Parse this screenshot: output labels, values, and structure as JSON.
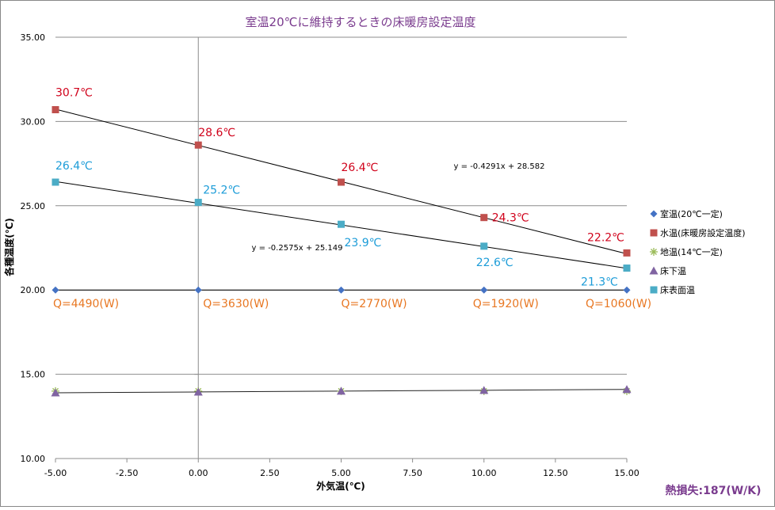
{
  "chart_data": {
    "type": "scatter",
    "title": "室温20℃に維持するときの床暖房設定温度",
    "xlabel": "外気温(℃)",
    "ylabel": "各種温度(℃)",
    "xlim": [
      -5,
      15
    ],
    "ylim": [
      10,
      35
    ],
    "x_ticks": [
      "-5.00",
      "-2.50",
      "0.00",
      "2.50",
      "5.00",
      "7.50",
      "10.00",
      "12.50",
      "15.00"
    ],
    "y_ticks": [
      "10.00",
      "15.00",
      "20.00",
      "25.00",
      "30.00",
      "35.00"
    ],
    "grid": "horizontal",
    "legend_position": "right",
    "footer_note": "熱損失:187(W/K)",
    "colors": {
      "title": "#7A3B8E",
      "room": "#4472C4",
      "water": "#C0504D",
      "ground": "#9BBB59",
      "underfloor": "#8064A2",
      "surface": "#4BACC6",
      "water_label": "#D0021B",
      "surface_label": "#1C9CD8",
      "heat_label": "#E87722"
    },
    "x": [
      -5,
      0,
      5,
      10,
      15
    ],
    "series": [
      {
        "name": "室温(20℃一定)",
        "marker": "diamond",
        "values": [
          20.0,
          20.0,
          20.0,
          20.0,
          20.0
        ]
      },
      {
        "name": "水温(床暖房設定温度)",
        "marker": "square",
        "values": [
          30.7,
          28.6,
          26.4,
          24.3,
          22.2
        ],
        "data_labels": [
          "30.7℃",
          "28.6℃",
          "26.4℃",
          "24.3℃",
          "22.2℃"
        ]
      },
      {
        "name": "地温(14℃一定)",
        "marker": "star",
        "values": [
          14.0,
          14.0,
          14.0,
          14.0,
          14.0
        ]
      },
      {
        "name": "床下温",
        "marker": "triangle",
        "values": [
          13.9,
          13.95,
          14.0,
          14.05,
          14.1
        ]
      },
      {
        "name": "床表面温",
        "marker": "square",
        "values": [
          26.4,
          25.2,
          23.9,
          22.6,
          21.3
        ],
        "data_labels": [
          "26.4℃",
          "25.2℃",
          "23.9℃",
          "22.6℃",
          "21.3℃"
        ]
      }
    ],
    "heat_labels": [
      "Q=4490(W)",
      "Q=3630(W)",
      "Q=2770(W)",
      "Q=1920(W)",
      "Q=1060(W)"
    ],
    "trendlines": [
      {
        "series": "水温(床暖房設定温度)",
        "equation": "y = -0.4291x + 28.582"
      },
      {
        "series": "床表面温",
        "equation": "y = -0.2575x + 25.149"
      }
    ]
  }
}
